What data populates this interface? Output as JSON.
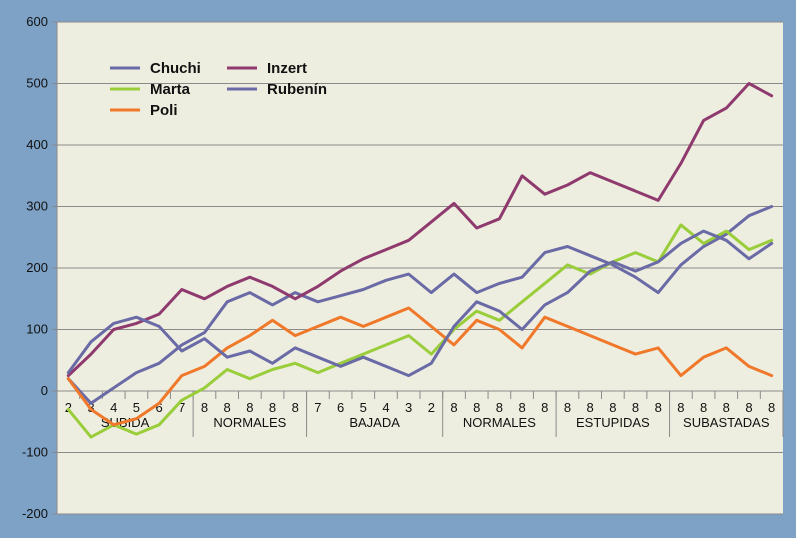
{
  "chart_data": {
    "type": "line",
    "categories": [
      "2",
      "3",
      "4",
      "5",
      "6",
      "7",
      "8",
      "8",
      "8",
      "8",
      "8",
      "7",
      "6",
      "5",
      "4",
      "3",
      "2",
      "8",
      "8",
      "8",
      "8",
      "8",
      "8",
      "8",
      "8",
      "8",
      "8",
      "8",
      "8",
      "8",
      "8",
      "8"
    ],
    "groups": [
      {
        "label": "SUBIDA",
        "start": 0,
        "end": 5
      },
      {
        "label": "NORMALES",
        "start": 6,
        "end": 10
      },
      {
        "label": "BAJADA",
        "start": 11,
        "end": 16
      },
      {
        "label": "NORMALES",
        "start": 17,
        "end": 21
      },
      {
        "label": "ESTUPIDAS",
        "start": 22,
        "end": 26
      },
      {
        "label": "SUBASTADAS",
        "start": 27,
        "end": 31
      }
    ],
    "ylim": [
      -200,
      600
    ],
    "yticks": [
      "-200",
      "-100",
      "0",
      "100",
      "200",
      "300",
      "400",
      "500",
      "600"
    ],
    "grid": "horizontal",
    "legend_position": "top-left",
    "series": [
      {
        "name": "Chuchi",
        "color": "#6a6aa6",
        "values": [
          20,
          -20,
          5,
          30,
          45,
          75,
          95,
          145,
          160,
          140,
          160,
          145,
          155,
          165,
          180,
          190,
          160,
          190,
          160,
          175,
          185,
          225,
          235,
          220,
          205,
          185,
          160,
          205,
          235,
          255,
          285,
          300
        ]
      },
      {
        "name": "Marta",
        "color": "#9acd3a",
        "values": [
          -30,
          -75,
          -55,
          -70,
          -55,
          -15,
          5,
          35,
          20,
          35,
          45,
          30,
          45,
          60,
          75,
          90,
          60,
          100,
          130,
          115,
          145,
          175,
          205,
          190,
          210,
          225,
          210,
          270,
          240,
          260,
          230,
          245
        ]
      },
      {
        "name": "Poli",
        "color": "#f0782a",
        "values": [
          20,
          -30,
          -55,
          -45,
          -20,
          25,
          40,
          70,
          90,
          115,
          90,
          105,
          120,
          105,
          120,
          135,
          105,
          75,
          115,
          100,
          70,
          120,
          105,
          90,
          75,
          60,
          70,
          25,
          55,
          70,
          40,
          25
        ]
      },
      {
        "name": "Inzert",
        "color": "#8f3a6e",
        "values": [
          25,
          60,
          100,
          110,
          125,
          165,
          150,
          170,
          185,
          170,
          150,
          170,
          195,
          215,
          230,
          245,
          275,
          305,
          265,
          280,
          350,
          320,
          335,
          355,
          340,
          325,
          310,
          370,
          440,
          460,
          500,
          480
        ]
      },
      {
        "name": "Rubenín",
        "color": "#6a6aa6",
        "values": [
          30,
          80,
          110,
          120,
          105,
          65,
          85,
          55,
          65,
          45,
          70,
          55,
          40,
          55,
          40,
          25,
          45,
          105,
          145,
          130,
          100,
          140,
          160,
          195,
          210,
          195,
          210,
          240,
          260,
          245,
          215,
          240
        ]
      }
    ]
  }
}
